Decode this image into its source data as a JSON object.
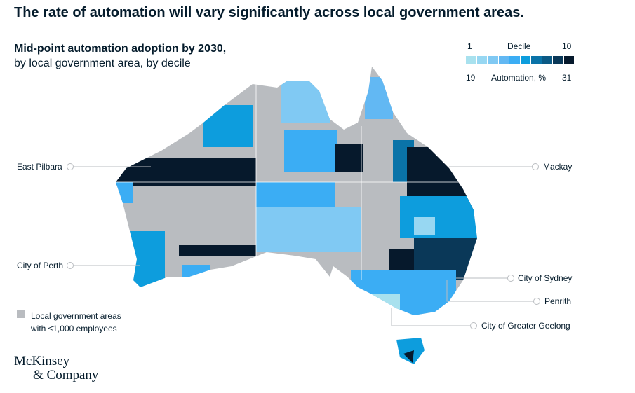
{
  "title": "The rate of automation will vary significantly across local government areas.",
  "subtitle_bold": "Mid-point automation adoption by 2030,",
  "subtitle": "by local government area, by decile",
  "legend": {
    "decile_label": "Decile",
    "decile_min": "1",
    "decile_max": "10",
    "automation_label": "Automation, %",
    "automation_min": "19",
    "automation_max": "31",
    "colors": [
      "#a8e1ee",
      "#97d7f2",
      "#80c9f3",
      "#62b8f3",
      "#3badf4",
      "#0d9ddd",
      "#0a73a8",
      "#0b5a85",
      "#0a3858",
      "#06192c"
    ]
  },
  "grey_legend": {
    "line1": "Local government areas",
    "line2": "with ≤1,000 employees",
    "color": "#b9bcc0"
  },
  "callouts": {
    "east_pilbara": "East Pilbara",
    "perth": "City of Perth",
    "mackay": "Mackay",
    "sydney": "City of Sydney",
    "penrith": "Penrith",
    "geelong": "City of Greater Geelong"
  },
  "logo": {
    "line1": "McKinsey",
    "line2": "& Company"
  }
}
